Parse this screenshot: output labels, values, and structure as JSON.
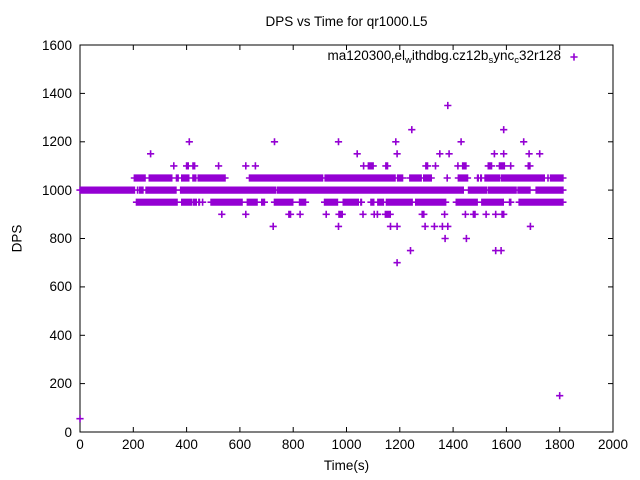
{
  "window": {
    "background_color": "#ffffff",
    "foreground_color": "#000000"
  },
  "chart_data": {
    "type": "scatter",
    "title": "DPS vs Time for qr1000.L5",
    "xlabel": "Time(s)",
    "ylabel": "DPS",
    "xlim": [
      0,
      2000
    ],
    "ylim": [
      0,
      1600
    ],
    "x_ticks": [
      0,
      200,
      400,
      600,
      800,
      1000,
      1200,
      1400,
      1600,
      1800,
      2000
    ],
    "y_ticks": [
      0,
      200,
      400,
      600,
      800,
      1000,
      1200,
      1400,
      1600
    ],
    "grid": false,
    "legend_position": "top-right-inside",
    "marker": "plus",
    "marker_color": "#9400D3",
    "series_name": "ma120300_rel_withdbg.cz12b_sync_c32r128",
    "legend_display_segments": [
      {
        "text": "ma120300"
      },
      {
        "text": "r",
        "sub": true
      },
      {
        "text": "el"
      },
      {
        "text": "w",
        "sub": true
      },
      {
        "text": "ithdbg.cz12b"
      },
      {
        "text": "s",
        "sub": true
      },
      {
        "text": "ync"
      },
      {
        "text": "c",
        "sub": true
      },
      {
        "text": "32r128"
      }
    ],
    "seed": 7,
    "bands": [
      {
        "dps": 1000,
        "t_start": 0,
        "t_end": 1812,
        "step": 2,
        "p_start": 0.4,
        "p_cont": 0.985,
        "start_on": true,
        "force_tail": true
      },
      {
        "dps": 1050,
        "t_start": 204,
        "t_end": 1812,
        "step": 2,
        "p_start": 0.1,
        "p_cont": 0.96,
        "start_on": true,
        "force_tail": true
      },
      {
        "dps": 950,
        "t_start": 212,
        "t_end": 1812,
        "step": 2,
        "p_start": 0.09,
        "p_cont": 0.955,
        "start_on": true,
        "force_tail": true
      },
      {
        "dps": 1100,
        "t_start": 280,
        "t_end": 1010,
        "step": 6,
        "p_start": 0.05,
        "p_cont": 0.35,
        "start_on": false,
        "force_tail": false
      },
      {
        "dps": 1100,
        "t_start": 1010,
        "t_end": 1800,
        "step": 6,
        "p_start": 0.13,
        "p_cont": 0.6,
        "start_on": false,
        "force_tail": false
      },
      {
        "dps": 900,
        "t_start": 280,
        "t_end": 900,
        "step": 6,
        "p_start": 0.06,
        "p_cont": 0.4,
        "start_on": false,
        "force_tail": false
      },
      {
        "dps": 900,
        "t_start": 900,
        "t_end": 1760,
        "step": 6,
        "p_start": 0.1,
        "p_cont": 0.5,
        "start_on": false,
        "force_tail": false
      }
    ],
    "points": [
      [
        0,
        55
      ],
      [
        265,
        1150
      ],
      [
        1040,
        1150
      ],
      [
        1190,
        1150
      ],
      [
        1350,
        1150
      ],
      [
        1385,
        1150
      ],
      [
        1555,
        1150
      ],
      [
        1590,
        1150
      ],
      [
        1685,
        1150
      ],
      [
        1725,
        1150
      ],
      [
        410,
        1200
      ],
      [
        730,
        1200
      ],
      [
        970,
        1200
      ],
      [
        1185,
        1200
      ],
      [
        1430,
        1200
      ],
      [
        1665,
        1200
      ],
      [
        1245,
        1250
      ],
      [
        1590,
        1250
      ],
      [
        1380,
        1350
      ],
      [
        725,
        850
      ],
      [
        970,
        850
      ],
      [
        1165,
        850
      ],
      [
        1190,
        850
      ],
      [
        1295,
        850
      ],
      [
        1330,
        850
      ],
      [
        1360,
        850
      ],
      [
        1380,
        850
      ],
      [
        1690,
        850
      ],
      [
        1370,
        800
      ],
      [
        1450,
        800
      ],
      [
        1240,
        750
      ],
      [
        1560,
        750
      ],
      [
        1580,
        750
      ],
      [
        1190,
        700
      ],
      [
        1800,
        150
      ]
    ]
  }
}
